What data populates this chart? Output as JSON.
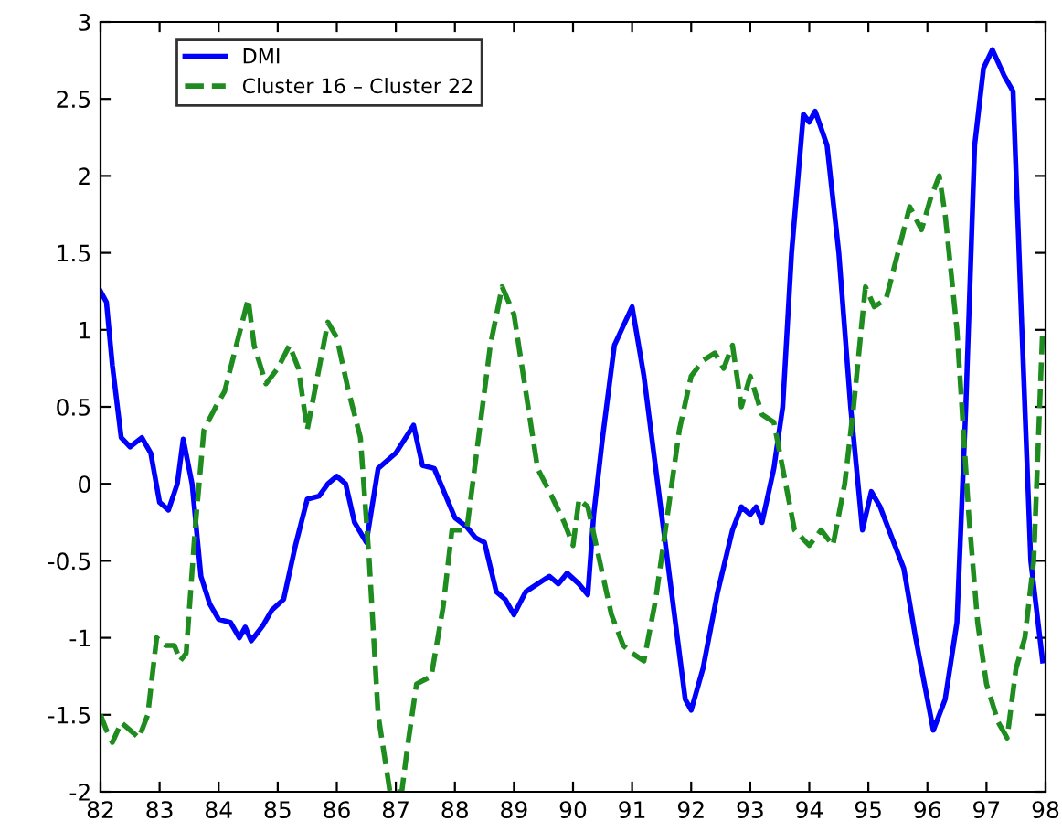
{
  "chart_data": {
    "type": "line",
    "series": [
      {
        "name": "DMI",
        "color": "#0000ff",
        "line_style": "solid",
        "x": [
          82.0,
          82.1,
          82.2,
          82.35,
          82.5,
          82.7,
          82.85,
          83.0,
          83.15,
          83.3,
          83.4,
          83.55,
          83.7,
          83.85,
          84.0,
          84.2,
          84.35,
          84.45,
          84.55,
          84.75,
          84.9,
          85.1,
          85.3,
          85.5,
          85.7,
          85.85,
          86.0,
          86.15,
          86.3,
          86.5,
          86.7,
          87.0,
          87.3,
          87.45,
          87.65,
          88.0,
          88.2,
          88.35,
          88.5,
          88.7,
          88.85,
          89.0,
          89.2,
          89.4,
          89.6,
          89.75,
          89.9,
          90.1,
          90.25,
          90.35,
          90.5,
          90.7,
          91.0,
          91.2,
          91.5,
          91.7,
          91.9,
          92.0,
          92.2,
          92.45,
          92.7,
          92.85,
          93.0,
          93.1,
          93.2,
          93.4,
          93.55,
          93.7,
          93.9,
          94.0,
          94.1,
          94.3,
          94.5,
          94.7,
          94.9,
          95.05,
          95.2,
          95.4,
          95.6,
          95.8,
          95.95,
          96.1,
          96.3,
          96.5,
          96.65,
          96.8,
          96.95,
          97.1,
          97.3,
          97.45,
          97.6,
          97.75,
          97.95
        ],
        "values": [
          1.25,
          1.18,
          0.77,
          0.3,
          0.24,
          0.3,
          0.2,
          -0.12,
          -0.17,
          0.0,
          0.29,
          0.0,
          -0.6,
          -0.78,
          -0.88,
          -0.9,
          -1.0,
          -0.93,
          -1.02,
          -0.92,
          -0.82,
          -0.75,
          -0.4,
          -0.1,
          -0.08,
          0.0,
          0.05,
          0.0,
          -0.25,
          -0.38,
          0.1,
          0.2,
          0.38,
          0.12,
          0.1,
          -0.22,
          -0.28,
          -0.35,
          -0.38,
          -0.7,
          -0.75,
          -0.85,
          -0.7,
          -0.65,
          -0.6,
          -0.65,
          -0.58,
          -0.65,
          -0.72,
          -0.2,
          0.3,
          0.9,
          1.15,
          0.7,
          -0.2,
          -0.8,
          -1.4,
          -1.47,
          -1.2,
          -0.7,
          -0.3,
          -0.15,
          -0.2,
          -0.15,
          -0.25,
          0.1,
          0.5,
          1.5,
          2.4,
          2.35,
          2.42,
          2.2,
          1.5,
          0.5,
          -0.3,
          -0.05,
          -0.15,
          -0.35,
          -0.55,
          -1.0,
          -1.3,
          -1.6,
          -1.4,
          -0.9,
          0.5,
          2.2,
          2.7,
          2.82,
          2.65,
          2.55,
          1.0,
          -0.5,
          -1.15
        ]
      },
      {
        "name": "Cluster 16 – Cluster 22",
        "color": "#1e8c1e",
        "line_style": "dashed",
        "x": [
          82.0,
          82.1,
          82.2,
          82.35,
          82.5,
          82.65,
          82.8,
          82.95,
          83.1,
          83.25,
          83.35,
          83.45,
          83.6,
          83.75,
          83.95,
          84.1,
          84.3,
          84.5,
          84.6,
          84.8,
          85.0,
          85.2,
          85.35,
          85.5,
          85.7,
          85.85,
          86.0,
          86.2,
          86.4,
          86.55,
          86.7,
          86.9,
          87.1,
          87.2,
          87.35,
          87.6,
          87.8,
          87.95,
          88.2,
          88.4,
          88.6,
          88.8,
          89.0,
          89.2,
          89.4,
          89.6,
          89.85,
          90.0,
          90.1,
          90.25,
          90.45,
          90.65,
          90.85,
          91.0,
          91.2,
          91.4,
          91.6,
          91.8,
          92.0,
          92.2,
          92.4,
          92.55,
          92.7,
          92.85,
          93.0,
          93.2,
          93.4,
          93.55,
          93.75,
          94.0,
          94.2,
          94.4,
          94.6,
          94.75,
          94.95,
          95.1,
          95.3,
          95.5,
          95.7,
          95.9,
          96.05,
          96.2,
          96.3,
          96.5,
          96.7,
          96.85,
          97.0,
          97.2,
          97.35,
          97.5,
          97.65,
          97.8,
          97.95
        ],
        "values": [
          -1.5,
          -1.6,
          -1.68,
          -1.55,
          -1.6,
          -1.65,
          -1.5,
          -1.0,
          -1.05,
          -1.05,
          -1.15,
          -1.1,
          -0.3,
          0.35,
          0.5,
          0.6,
          0.9,
          1.2,
          0.9,
          0.65,
          0.75,
          0.9,
          0.75,
          0.35,
          0.75,
          1.05,
          0.95,
          0.6,
          0.3,
          -0.5,
          -1.5,
          -2.0,
          -2.0,
          -1.7,
          -1.3,
          -1.25,
          -0.8,
          -0.3,
          -0.3,
          0.3,
          0.9,
          1.28,
          1.1,
          0.6,
          0.1,
          -0.05,
          -0.25,
          -0.4,
          -0.1,
          -0.15,
          -0.5,
          -0.85,
          -1.05,
          -1.1,
          -1.15,
          -0.75,
          -0.2,
          0.35,
          0.7,
          0.8,
          0.85,
          0.75,
          0.9,
          0.5,
          0.7,
          0.45,
          0.4,
          0.1,
          -0.3,
          -0.4,
          -0.3,
          -0.4,
          0.0,
          0.5,
          1.28,
          1.15,
          1.2,
          1.5,
          1.8,
          1.65,
          1.85,
          2.0,
          1.75,
          1.0,
          -0.2,
          -0.9,
          -1.3,
          -1.55,
          -1.65,
          -1.2,
          -1.0,
          -0.5,
          1.0
        ]
      }
    ],
    "xlim": [
      82,
      98
    ],
    "ylim": [
      -2,
      3
    ],
    "xticks": [
      82,
      83,
      84,
      85,
      86,
      87,
      88,
      89,
      90,
      91,
      92,
      93,
      94,
      95,
      96,
      97,
      98
    ],
    "yticks": [
      -2,
      -1.5,
      -1,
      -0.5,
      0,
      0.5,
      1,
      1.5,
      2,
      2.5,
      3
    ],
    "grid": false,
    "legend": "top left"
  }
}
